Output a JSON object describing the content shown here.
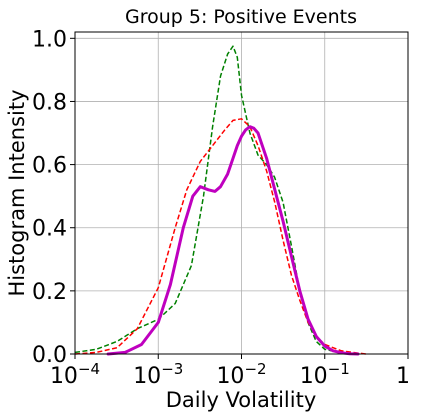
{
  "chart_data": {
    "type": "line",
    "title": "Group 5: Positive Events",
    "xlabel": "Daily Volatility",
    "ylabel": "Histogram Intensity",
    "xscale": "log",
    "xlim": [
      0.0001,
      1
    ],
    "ylim": [
      0,
      1.02
    ],
    "grid": true,
    "x_ticks": [
      {
        "value": 0.0001,
        "base": "10",
        "exp": "−4"
      },
      {
        "value": 0.001,
        "base": "10",
        "exp": "−3"
      },
      {
        "value": 0.01,
        "base": "10",
        "exp": "−2"
      },
      {
        "value": 0.1,
        "base": "10",
        "exp": "−1"
      },
      {
        "value": 1,
        "base": "1",
        "exp": ""
      }
    ],
    "y_ticks": [
      "0.0",
      "0.2",
      "0.4",
      "0.6",
      "0.8",
      "1.0"
    ],
    "series": [
      {
        "color": "#008000",
        "style": "dashed",
        "width": 1.5,
        "x": [
          0.0001,
          0.00018,
          0.00032,
          0.00056,
          0.001,
          0.0016,
          0.0025,
          0.0035,
          0.0045,
          0.0056,
          0.0068,
          0.0079,
          0.0089,
          0.01,
          0.0126,
          0.0158,
          0.02,
          0.025,
          0.0316,
          0.04,
          0.05,
          0.063,
          0.079,
          0.1,
          0.158,
          0.251
        ],
        "y": [
          0.005,
          0.015,
          0.04,
          0.08,
          0.11,
          0.16,
          0.28,
          0.5,
          0.72,
          0.88,
          0.95,
          0.975,
          0.94,
          0.82,
          0.7,
          0.63,
          0.6,
          0.56,
          0.48,
          0.34,
          0.2,
          0.1,
          0.04,
          0.015,
          0.003,
          0.0
        ]
      },
      {
        "color": "#ff0000",
        "style": "dashed",
        "width": 1.5,
        "x": [
          0.0001,
          0.00018,
          0.00032,
          0.00056,
          0.001,
          0.0016,
          0.0022,
          0.0032,
          0.0045,
          0.0063,
          0.0079,
          0.01,
          0.0126,
          0.0158,
          0.02,
          0.0251,
          0.0316,
          0.0398,
          0.0501,
          0.0631,
          0.0794,
          0.1,
          0.158,
          0.251,
          0.316
        ],
        "y": [
          0.0,
          0.005,
          0.02,
          0.08,
          0.21,
          0.4,
          0.52,
          0.61,
          0.66,
          0.71,
          0.74,
          0.745,
          0.72,
          0.66,
          0.58,
          0.48,
          0.36,
          0.25,
          0.17,
          0.1,
          0.055,
          0.03,
          0.01,
          0.003,
          0.0
        ]
      },
      {
        "color": "#bf00bf",
        "style": "solid",
        "width": 3,
        "x": [
          0.00025,
          0.0004,
          0.00063,
          0.001,
          0.0014,
          0.002,
          0.0026,
          0.0032,
          0.004,
          0.0048,
          0.0056,
          0.0068,
          0.0079,
          0.0089,
          0.01,
          0.0112,
          0.0126,
          0.0141,
          0.0158,
          0.02,
          0.0251,
          0.0316,
          0.0398,
          0.0501,
          0.0631,
          0.0794,
          0.1,
          0.126,
          0.158,
          0.2,
          0.251
        ],
        "y": [
          0.0,
          0.005,
          0.03,
          0.1,
          0.22,
          0.4,
          0.5,
          0.53,
          0.52,
          0.515,
          0.53,
          0.57,
          0.62,
          0.66,
          0.69,
          0.71,
          0.72,
          0.715,
          0.7,
          0.62,
          0.52,
          0.42,
          0.31,
          0.2,
          0.11,
          0.055,
          0.025,
          0.01,
          0.004,
          0.001,
          0.0
        ]
      }
    ]
  }
}
